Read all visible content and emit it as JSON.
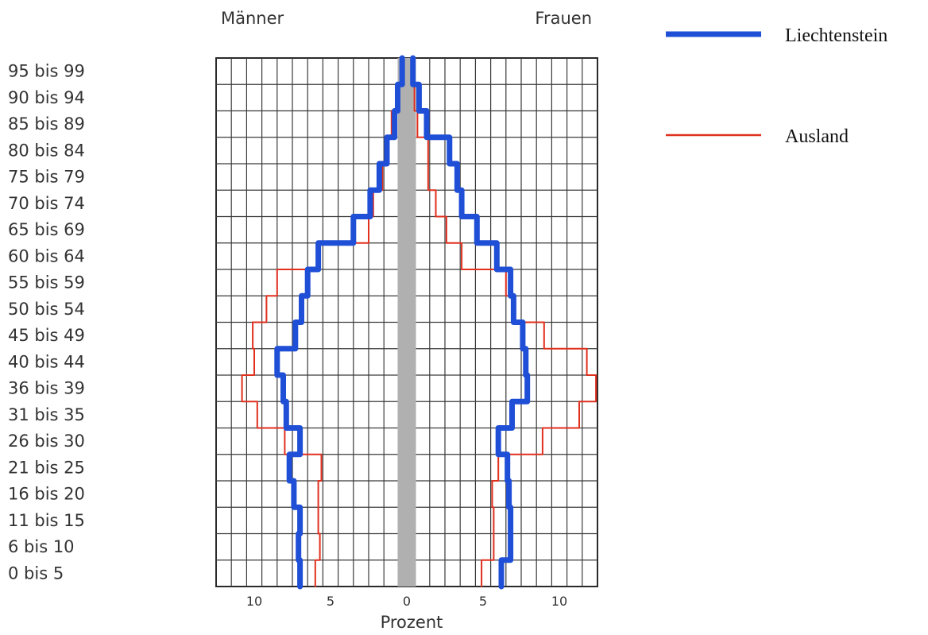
{
  "chart_data": {
    "type": "line",
    "title": "",
    "left_header": "Männer",
    "right_header": "Frauen",
    "xlabel": "Prozent",
    "xlim": [
      -12.5,
      12.5
    ],
    "x_ticks": [
      {
        "value": -10,
        "label": "10"
      },
      {
        "value": -5,
        "label": "5"
      },
      {
        "value": 0,
        "label": "0"
      },
      {
        "value": 5,
        "label": "5"
      },
      {
        "value": 10,
        "label": "10"
      }
    ],
    "categories": [
      "95 bis 99",
      "90 bis 94",
      "85 bis 89",
      "80 bis 84",
      "75 bis 79",
      "70 bis 74",
      "65 bis 69",
      "60 bis 64",
      "55 bis 59",
      "50 bis 54",
      "45 bis 49",
      "40 bis 44",
      "36 bis 39",
      "31 bis 35",
      "26 bis 30",
      "21 bis 25",
      "16 bis 20",
      "11 bis 15",
      "6 bis 10",
      "0 bis 5"
    ],
    "grid": true,
    "legend_position": "top-right",
    "series": [
      {
        "name": "Liechtenstein",
        "color": "#1f4fd6",
        "maenner": [
          0.3,
          0.6,
          0.8,
          1.3,
          1.8,
          2.4,
          3.5,
          5.8,
          6.5,
          6.9,
          7.3,
          8.5,
          8.1,
          7.9,
          7.0,
          7.7,
          7.4,
          7.0,
          7.1,
          7.0
        ],
        "frauen": [
          0.4,
          0.8,
          1.3,
          2.8,
          3.3,
          3.6,
          4.6,
          5.9,
          6.8,
          7.0,
          7.6,
          7.8,
          7.9,
          6.9,
          6.0,
          6.6,
          6.7,
          6.8,
          6.8,
          6.2
        ]
      },
      {
        "name": "Ausland",
        "color": "#e0301e",
        "maenner": [
          0.3,
          0.5,
          1.0,
          1.3,
          1.6,
          2.2,
          2.5,
          5.8,
          8.5,
          9.2,
          10.1,
          10.0,
          10.8,
          9.8,
          8.0,
          5.6,
          5.8,
          5.8,
          5.7,
          6.0
        ],
        "frauen": [
          0.4,
          0.5,
          0.7,
          1.4,
          1.4,
          1.9,
          2.6,
          3.6,
          6.5,
          7.0,
          9.0,
          11.8,
          12.4,
          11.3,
          8.9,
          6.0,
          5.6,
          5.7,
          5.7,
          4.9
        ]
      }
    ]
  }
}
